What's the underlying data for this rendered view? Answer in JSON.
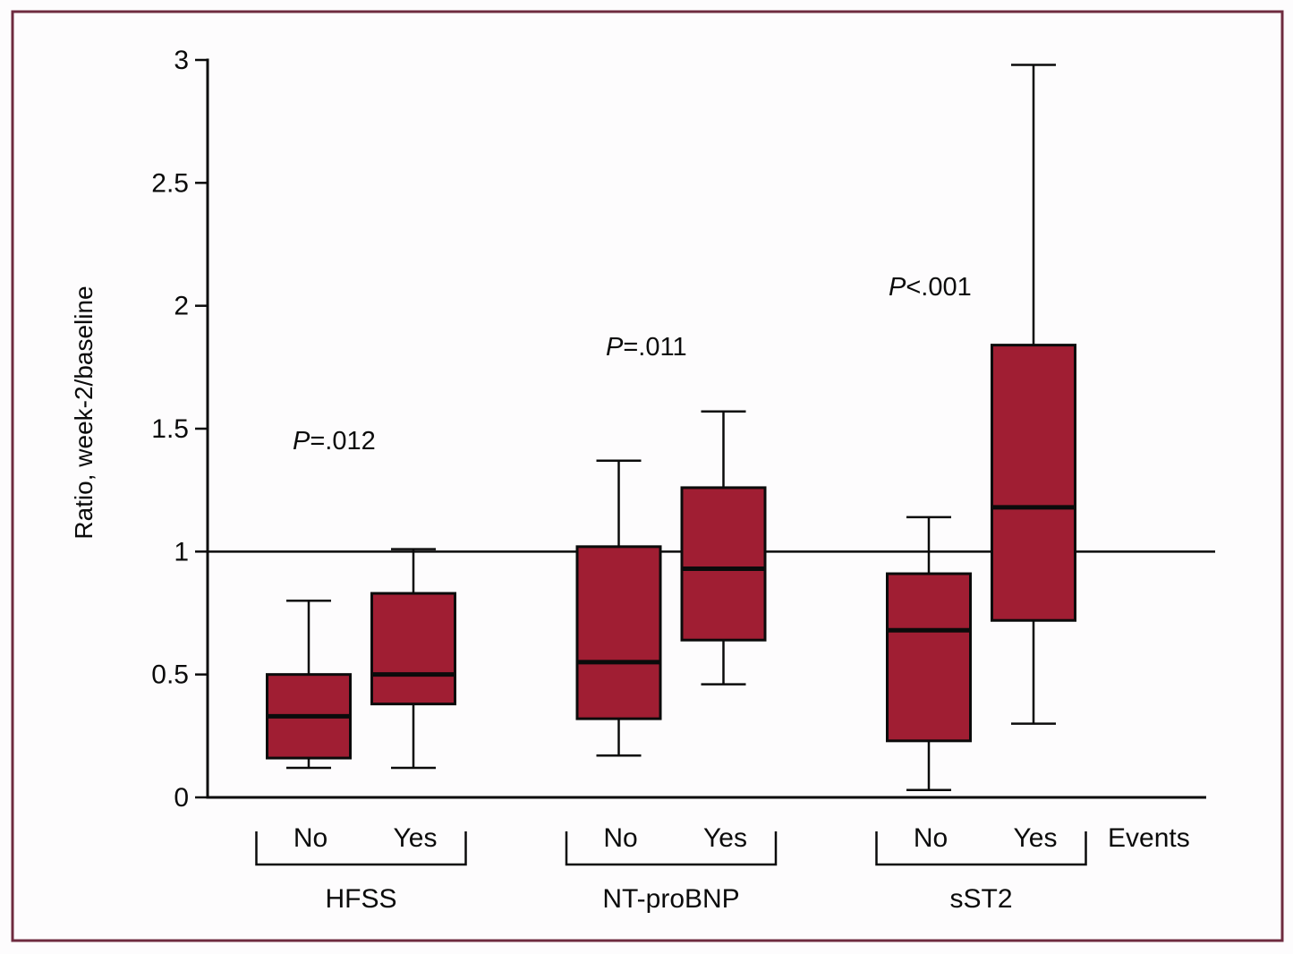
{
  "figure": {
    "frame_color": "#6E2B3F",
    "background_color": "#FDFCFD",
    "ink_color": "#0B0B0B"
  },
  "chart_data": {
    "type": "boxplot",
    "title": "",
    "ylabel": "Ratio, week-2/baseline",
    "xlabel": "Events",
    "ylim": [
      0,
      3
    ],
    "ytick_values": [
      0,
      0.5,
      1,
      1.5,
      2,
      2.5,
      3
    ],
    "ytick_labels": [
      "0",
      "0.5",
      "1",
      "1.5",
      "2",
      "2.5",
      "3"
    ],
    "reference_line_y": 1,
    "grid": false,
    "legend": "none",
    "box_fill_color": "#A01E33",
    "box_stroke_color": "#0B0B0B",
    "groups": [
      {
        "name": "HFSS",
        "p_label": "P=.012",
        "boxes": [
          {
            "label": "No",
            "whisker_low": 0.12,
            "q1": 0.16,
            "median": 0.33,
            "q3": 0.5,
            "whisker_high": 0.8
          },
          {
            "label": "Yes",
            "whisker_low": 0.12,
            "q1": 0.38,
            "median": 0.5,
            "q3": 0.83,
            "whisker_high": 1.01
          }
        ]
      },
      {
        "name": "NT-proBNP",
        "p_label": "P=.011",
        "boxes": [
          {
            "label": "No",
            "whisker_low": 0.17,
            "q1": 0.32,
            "median": 0.55,
            "q3": 1.02,
            "whisker_high": 1.37
          },
          {
            "label": "Yes",
            "whisker_low": 0.46,
            "q1": 0.64,
            "median": 0.93,
            "q3": 1.26,
            "whisker_high": 1.57
          }
        ]
      },
      {
        "name": "sST2",
        "p_label": "P<.001",
        "boxes": [
          {
            "label": "No",
            "whisker_low": 0.03,
            "q1": 0.23,
            "median": 0.68,
            "q3": 0.91,
            "whisker_high": 1.14
          },
          {
            "label": "Yes",
            "whisker_low": 0.3,
            "q1": 0.72,
            "median": 1.18,
            "q3": 1.84,
            "whisker_high": 2.98
          }
        ]
      }
    ]
  }
}
